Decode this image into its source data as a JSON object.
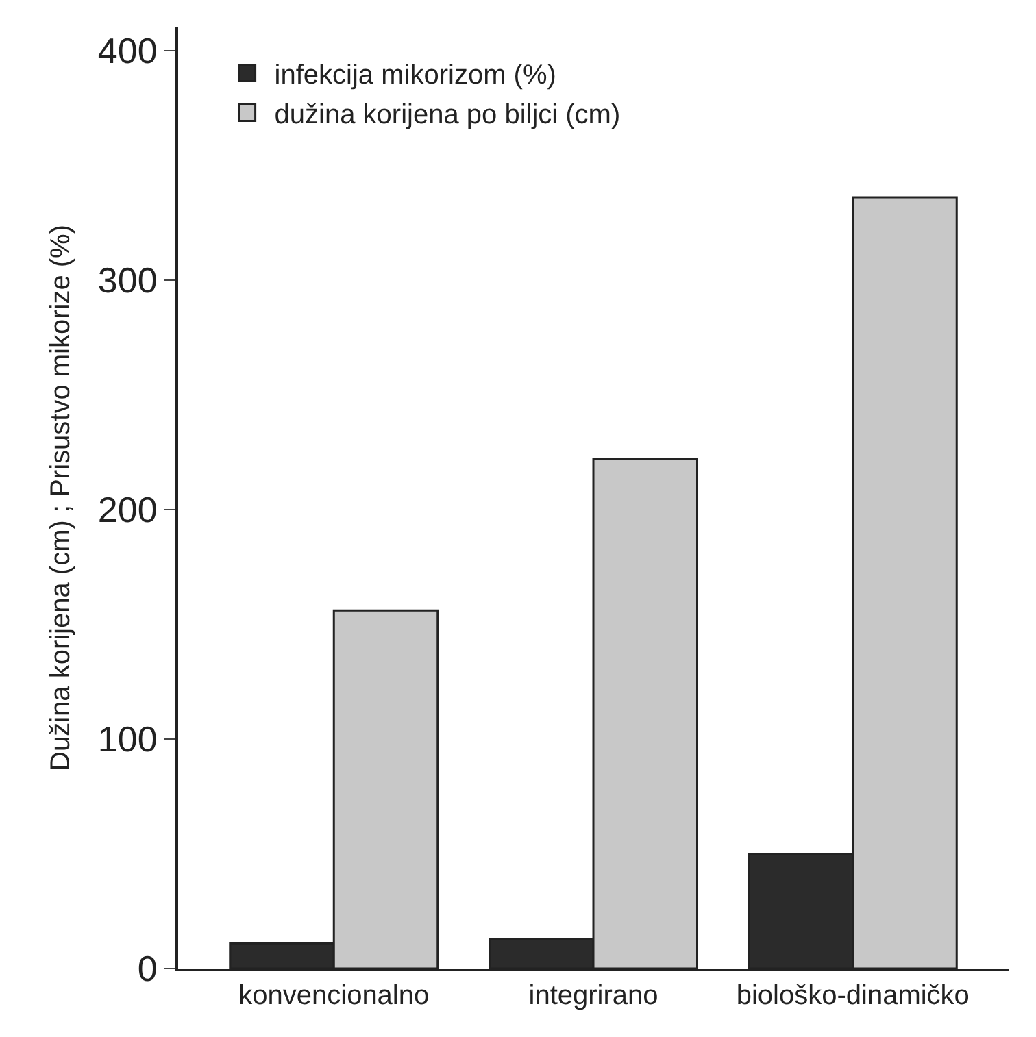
{
  "chart_data": {
    "type": "bar",
    "ylabel": "Dužina korijena (cm) ; Prisustvo mikorize (%)",
    "categories": [
      "konvencionalno",
      "integrirano",
      "biološko-dinamičko"
    ],
    "series": [
      {
        "name": "infekcija mikorizom (%)",
        "color": "#2b2b2b",
        "values": [
          11,
          13,
          50
        ]
      },
      {
        "name": "dužina korijena po biljci (cm)",
        "color": "#c8c8c8",
        "values": [
          156,
          222,
          336
        ]
      }
    ],
    "ylim": [
      0,
      410
    ],
    "yticks": [
      0,
      100,
      200,
      300,
      400
    ],
    "grid": false,
    "legend": "top left"
  }
}
